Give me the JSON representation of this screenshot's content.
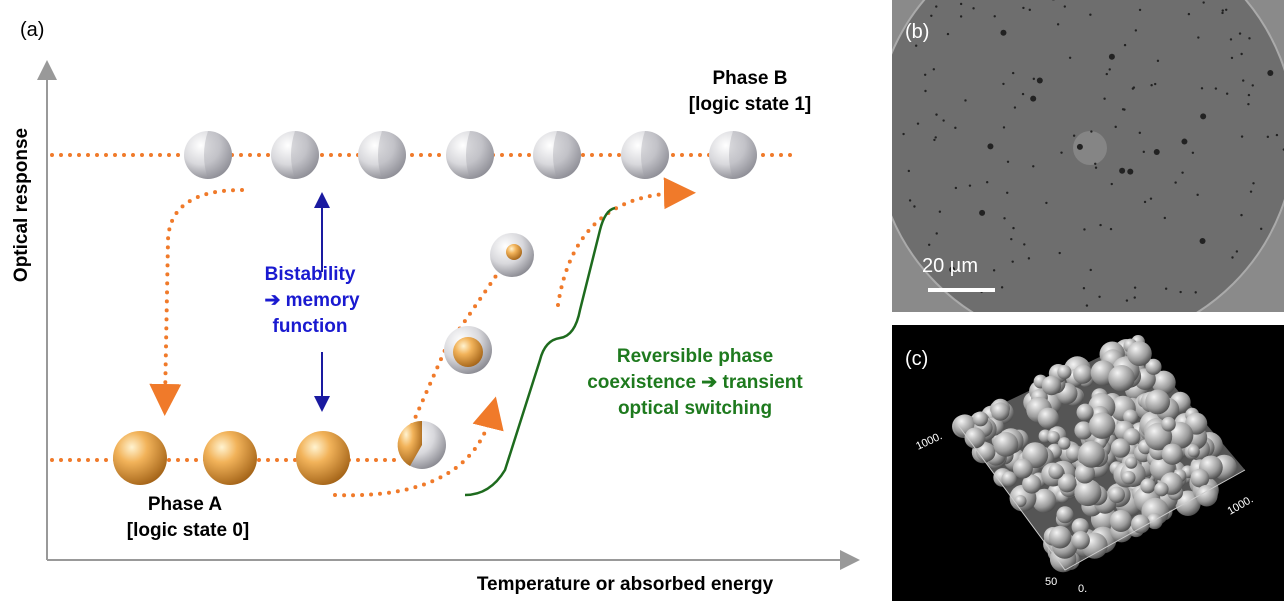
{
  "panel_a": {
    "label": "(a)",
    "y_axis_label": "Optical response",
    "x_axis_label": "Temperature or absorbed energy",
    "phase_b": {
      "name": "Phase B",
      "state": "[logic state 1]"
    },
    "phase_a": {
      "name": "Phase A",
      "state": "[logic state 0]"
    },
    "bistability": [
      "Bistability",
      "➔ memory",
      "function"
    ],
    "coexistence": [
      "Reversible phase",
      "coexistence ➔ transient",
      "optical switching"
    ]
  },
  "panel_b": {
    "label": "(b)",
    "scale_bar": "20 µm"
  },
  "panel_c": {
    "label": "(c)",
    "axis_labels": [
      "1000.",
      "1000.",
      "0.",
      "50"
    ]
  }
}
